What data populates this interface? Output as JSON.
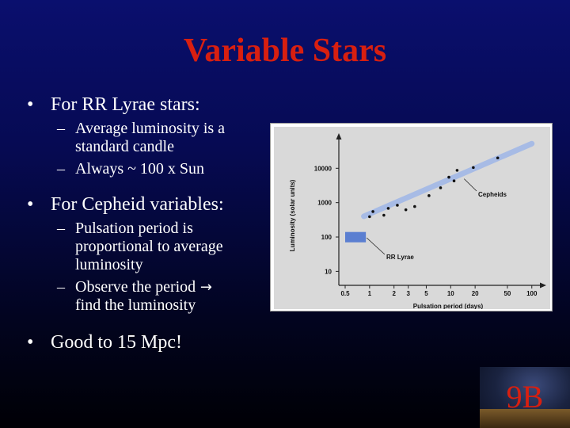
{
  "slide": {
    "title": "Variable Stars",
    "bullets": [
      {
        "text": "For RR Lyrae stars:",
        "sub": [
          {
            "lines": [
              "Average luminosity is a",
              "standard candle"
            ]
          },
          {
            "lines": [
              "Always ~ 100 x Sun"
            ]
          }
        ]
      },
      {
        "text": "For Cepheid variables:",
        "sub": [
          {
            "lines": [
              "Pulsation period is",
              "proportional to average",
              "luminosity"
            ]
          },
          {
            "lines": [
              "Observe the period",
              "find the luminosity"
            ],
            "arrow_after_first_line": true
          }
        ]
      },
      {
        "text": "Good to 15 Mpc!",
        "sub": []
      }
    ],
    "bullet_glyph": "•",
    "dash_glyph": "–",
    "arrow_glyph": "arrow-right-icon"
  },
  "badge": {
    "text": "9B"
  },
  "colors": {
    "title": "#d81f10",
    "background_top": "#0a0f6e",
    "background_bottom": "#000005",
    "text": "#ffffff",
    "chart_panel": "#d9d9d9",
    "trend_band": "#9fb6e8",
    "rr_lyrae_box": "#5b7fd1"
  },
  "chart_data": {
    "type": "scatter",
    "x_scale": "log",
    "y_scale": "log",
    "xlabel": "Pulsation period (days)",
    "ylabel": "Luminosity (solar units)",
    "x_ticks": [
      0.5,
      1,
      2,
      3,
      5,
      10,
      20,
      50,
      100
    ],
    "y_ticks": [
      10,
      100,
      1000,
      10000
    ],
    "xlim": [
      0.5,
      110
    ],
    "ylim": [
      6,
      50000
    ],
    "series": [
      {
        "name": "Cepheids",
        "points": [
          [
            1.0,
            390
          ],
          [
            1.1,
            550
          ],
          [
            1.5,
            430
          ],
          [
            1.7,
            680
          ],
          [
            2.2,
            840
          ],
          [
            2.8,
            620
          ],
          [
            3.6,
            770
          ],
          [
            5.4,
            1600
          ],
          [
            7.5,
            2700
          ],
          [
            9.5,
            5500
          ],
          [
            11,
            4300
          ],
          [
            12,
            8700
          ],
          [
            19,
            10500
          ],
          [
            38,
            20000
          ]
        ]
      }
    ],
    "trend_band": {
      "x": [
        0.85,
        100
      ],
      "y": [
        400,
        52000
      ]
    },
    "rr_lyrae_region": {
      "x": [
        0.5,
        0.9
      ],
      "y": [
        70,
        140
      ]
    },
    "annotations": [
      {
        "text": "Cepheids",
        "points_to": [
          14,
          5200
        ]
      },
      {
        "text": "RR Lyrae",
        "points_to": [
          0.92,
          95
        ]
      }
    ]
  }
}
